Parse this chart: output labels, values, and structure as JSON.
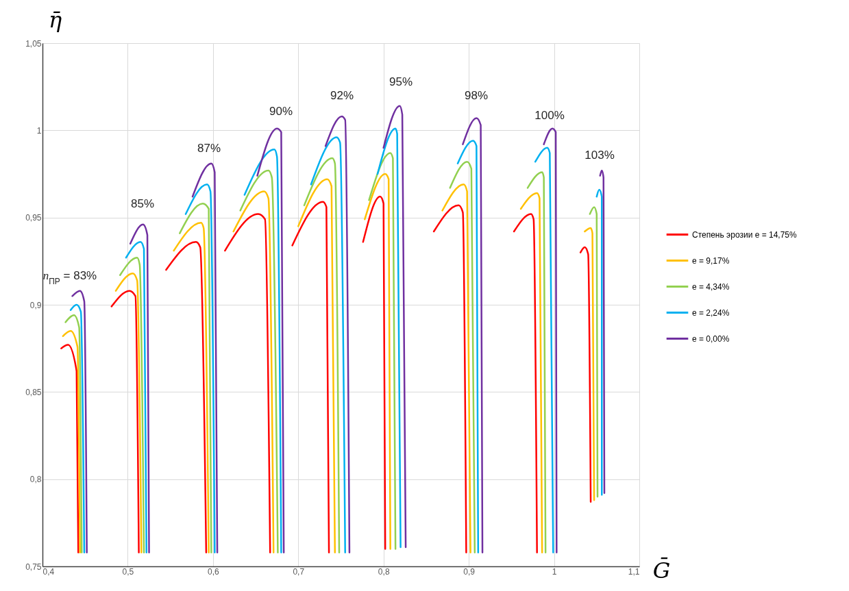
{
  "chart_data": {
    "type": "line",
    "xlabel": "Ḡ",
    "ylabel": "η̄",
    "xlim": [
      0.4,
      1.1
    ],
    "ylim": [
      0.75,
      1.05
    ],
    "xticks": [
      {
        "value": 0.4,
        "label": "0,4"
      },
      {
        "value": 0.5,
        "label": "0,5"
      },
      {
        "value": 0.6,
        "label": "0,6"
      },
      {
        "value": 0.7,
        "label": "0,7"
      },
      {
        "value": 0.8,
        "label": "0,8"
      },
      {
        "value": 0.9,
        "label": "0,9"
      },
      1,
      {
        "value": 1.1,
        "label": "1,1"
      }
    ],
    "yticks": [
      {
        "value": 0.75,
        "label": "0,75"
      },
      {
        "value": 0.8,
        "label": "0,8"
      },
      {
        "value": 0.85,
        "label": "0,85"
      },
      {
        "value": 0.9,
        "label": "0,9"
      },
      {
        "value": 0.95,
        "label": "0,95"
      },
      1,
      {
        "value": 1.05,
        "label": "1,05"
      }
    ],
    "grid": true,
    "legend": "right",
    "series": [
      {
        "name": "Степень эрозии e = 14,75%",
        "color": "#ff0000",
        "x": [
          0.422,
          0.43,
          0.44,
          0.442,
          null,
          0.481,
          0.502,
          0.509,
          0.513,
          null,
          0.545,
          0.58,
          0.585,
          0.592,
          null,
          0.614,
          0.653,
          0.661,
          0.667,
          null,
          0.693,
          0.729,
          0.733,
          0.736,
          null,
          0.776,
          0.796,
          0.8,
          0.802,
          null,
          0.859,
          0.888,
          0.893,
          0.897,
          null,
          0.953,
          0.973,
          0.976,
          0.98,
          null,
          1.031,
          1.036,
          1.04,
          1.043
        ],
        "values": [
          0.875,
          0.877,
          0.862,
          0.758,
          null,
          0.899,
          0.908,
          0.905,
          0.758,
          null,
          0.92,
          0.936,
          0.933,
          0.758,
          null,
          0.931,
          0.952,
          0.949,
          0.758,
          null,
          0.934,
          0.959,
          0.956,
          0.758,
          null,
          0.936,
          0.962,
          0.958,
          0.76,
          null,
          0.942,
          0.957,
          0.953,
          0.758,
          null,
          0.942,
          0.952,
          0.949,
          0.758,
          null,
          0.93,
          0.933,
          0.929,
          0.787
        ]
      },
      {
        "name": "e = 9,17%",
        "color": "#ffc000",
        "x": [
          0.424,
          0.433,
          0.441,
          0.444,
          null,
          0.486,
          0.506,
          0.511,
          0.516,
          null,
          0.554,
          0.586,
          0.589,
          0.595,
          null,
          0.624,
          0.66,
          0.665,
          0.671,
          null,
          0.7,
          0.734,
          0.739,
          0.743,
          null,
          0.778,
          0.802,
          0.806,
          0.808,
          null,
          0.869,
          0.894,
          0.898,
          0.902,
          null,
          0.961,
          0.98,
          0.983,
          0.986,
          null,
          1.036,
          1.043,
          1.045,
          1.047
        ],
        "values": [
          0.882,
          0.885,
          0.876,
          0.758,
          null,
          0.908,
          0.918,
          0.914,
          0.758,
          null,
          0.931,
          0.947,
          0.944,
          0.758,
          null,
          0.942,
          0.965,
          0.961,
          0.758,
          null,
          0.945,
          0.972,
          0.968,
          0.758,
          null,
          0.949,
          0.975,
          0.972,
          0.76,
          null,
          0.954,
          0.969,
          0.965,
          0.758,
          null,
          0.955,
          0.964,
          0.961,
          0.758,
          null,
          0.942,
          0.944,
          0.941,
          0.788
        ]
      },
      {
        "name": "e = 4,34%",
        "color": "#92d050",
        "x": [
          0.427,
          0.437,
          0.443,
          0.446,
          null,
          0.491,
          0.511,
          0.514,
          0.519,
          null,
          0.561,
          0.588,
          0.595,
          0.598,
          null,
          0.632,
          0.665,
          0.669,
          0.676,
          null,
          0.707,
          0.74,
          0.743,
          0.748,
          null,
          0.783,
          0.808,
          0.811,
          0.814,
          null,
          0.878,
          0.898,
          0.903,
          0.907,
          null,
          0.969,
          0.986,
          0.988,
          0.99,
          null,
          1.042,
          1.047,
          1.05,
          1.051
        ],
        "values": [
          0.89,
          0.894,
          0.887,
          0.758,
          null,
          0.917,
          0.927,
          0.923,
          0.758,
          null,
          0.941,
          0.958,
          0.955,
          0.758,
          null,
          0.954,
          0.977,
          0.973,
          0.758,
          null,
          0.957,
          0.984,
          0.981,
          0.758,
          null,
          0.96,
          0.987,
          0.984,
          0.76,
          null,
          0.967,
          0.982,
          0.978,
          0.758,
          null,
          0.967,
          0.976,
          0.973,
          0.758,
          null,
          0.952,
          0.956,
          0.952,
          0.79
        ]
      },
      {
        "name": "e = 2,24%",
        "color": "#00b0f0",
        "x": [
          0.433,
          0.44,
          0.445,
          0.449,
          null,
          0.498,
          0.515,
          0.519,
          0.522,
          null,
          0.568,
          0.593,
          0.597,
          0.602,
          null,
          0.637,
          0.672,
          0.675,
          0.68,
          null,
          0.715,
          0.745,
          0.749,
          0.755,
          null,
          0.793,
          0.814,
          0.816,
          0.82,
          null,
          0.887,
          0.905,
          0.909,
          0.911,
          null,
          0.978,
          0.992,
          0.995,
          0.999,
          null,
          1.05,
          1.053,
          1.056,
          1.056
        ],
        "values": [
          0.897,
          0.9,
          0.896,
          0.758,
          null,
          0.927,
          0.936,
          0.932,
          0.758,
          null,
          0.952,
          0.969,
          0.965,
          0.758,
          null,
          0.963,
          0.989,
          0.985,
          0.758,
          null,
          0.969,
          0.996,
          0.993,
          0.758,
          null,
          0.975,
          1.001,
          0.998,
          0.761,
          null,
          0.981,
          0.994,
          0.991,
          0.758,
          null,
          0.982,
          0.99,
          0.987,
          0.758,
          null,
          0.962,
          0.966,
          0.962,
          0.791
        ]
      },
      {
        "name": "e = 0,00%",
        "color": "#7030a0",
        "x": [
          0.435,
          0.444,
          0.449,
          0.452,
          null,
          0.503,
          0.518,
          0.523,
          0.525,
          null,
          0.576,
          0.598,
          0.602,
          0.605,
          null,
          0.652,
          0.675,
          0.68,
          0.683,
          null,
          0.732,
          0.751,
          0.755,
          0.76,
          null,
          0.8,
          0.819,
          0.822,
          0.826,
          null,
          0.893,
          0.909,
          0.914,
          0.916,
          null,
          0.988,
          0.998,
          1.002,
          1.003,
          null,
          1.054,
          1.056,
          1.058,
          1.059
        ],
        "values": [
          0.905,
          0.908,
          0.902,
          0.758,
          null,
          0.935,
          0.946,
          0.94,
          0.758,
          null,
          0.962,
          0.981,
          0.976,
          0.758,
          null,
          0.974,
          1.001,
          0.999,
          0.758,
          null,
          0.991,
          1.008,
          1.006,
          0.758,
          null,
          0.99,
          1.014,
          1.009,
          0.761,
          null,
          0.992,
          1.007,
          1.003,
          0.758,
          null,
          0.992,
          1.001,
          0.999,
          0.758,
          null,
          0.974,
          0.977,
          0.973,
          0.792
        ]
      }
    ],
    "annotations": [
      "n$_{ПР}$ = 83%",
      "85%",
      "87%",
      "90%",
      "92%",
      "95%",
      "98%",
      "100%",
      "103%"
    ]
  }
}
